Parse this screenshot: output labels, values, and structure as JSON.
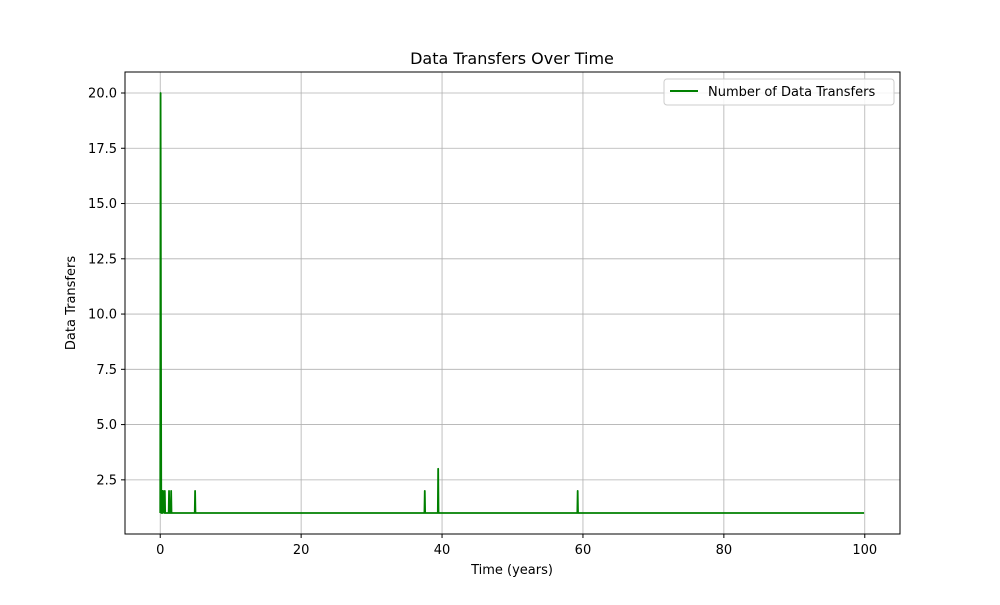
{
  "chart_data": {
    "type": "line",
    "title": "Data Transfers Over Time",
    "xlabel": "Time (years)",
    "ylabel": "Data Transfers",
    "xlim": [
      -5,
      105
    ],
    "ylim": [
      0.05,
      20.95
    ],
    "x_ticks": [
      0,
      20,
      40,
      60,
      80,
      100
    ],
    "x_tick_labels": [
      "0",
      "20",
      "40",
      "60",
      "80",
      "100"
    ],
    "y_ticks": [
      2.5,
      5.0,
      7.5,
      10.0,
      12.5,
      15.0,
      17.5,
      20.0
    ],
    "y_tick_labels": [
      "2.5",
      "5.0",
      "7.5",
      "10.0",
      "12.5",
      "15.0",
      "17.5",
      "20.0"
    ],
    "grid": true,
    "legend_position": "top-right",
    "series": [
      {
        "name": "Number of Data Transfers",
        "color": "#008000",
        "x": [
          0,
          0.05,
          0.1,
          0.15,
          0.2,
          0.25,
          0.3,
          0.35,
          0.4,
          0.6,
          0.65,
          0.7,
          1.0,
          1.2,
          1.25,
          1.3,
          1.5,
          1.55,
          1.6,
          4.9,
          4.95,
          5.0,
          37.5,
          37.55,
          37.6,
          39.4,
          39.45,
          39.5,
          59.2,
          59.25,
          59.3,
          99.9
        ],
        "values": [
          1,
          20,
          10,
          1,
          2,
          1,
          2,
          1,
          2,
          1,
          2,
          1,
          1,
          1,
          2,
          1,
          1,
          2,
          1,
          1,
          2,
          1,
          1,
          2,
          1,
          1,
          3,
          1,
          1,
          2,
          1,
          1
        ]
      }
    ]
  }
}
